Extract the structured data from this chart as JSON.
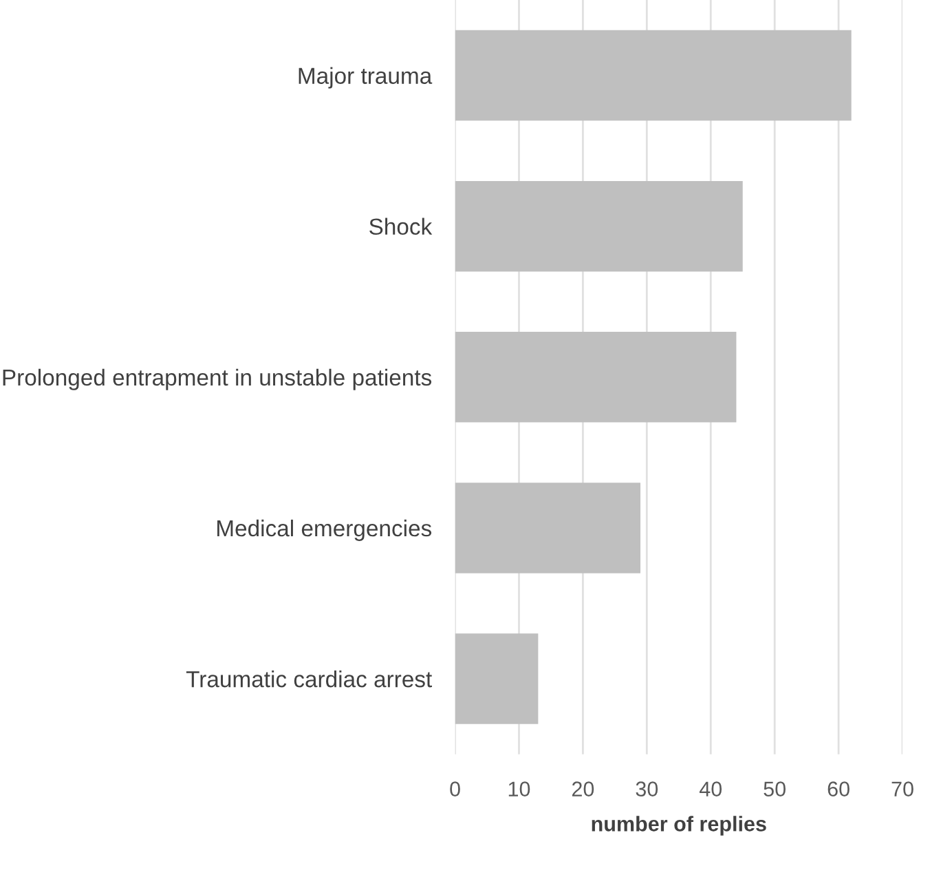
{
  "chart_data": {
    "type": "bar",
    "orientation": "horizontal",
    "xlabel": "number of replies",
    "categories": [
      "Major trauma",
      "Shock",
      "Prolonged entrapment in unstable patients",
      "Medical emergencies",
      "Traumatic cardiac arrest"
    ],
    "values": [
      62,
      45,
      44,
      29,
      13
    ],
    "color": "#bfbfbf",
    "xlim": [
      0,
      70
    ],
    "xticks": [
      0,
      10,
      20,
      30,
      40,
      50,
      60,
      70
    ],
    "grid": "x",
    "legend": false
  }
}
